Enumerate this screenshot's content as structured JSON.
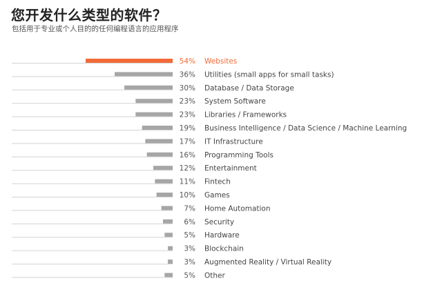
{
  "header": {
    "title": "您开发什么类型的软件？",
    "subtitle": "包括用于专业或个人目的的任何编程语言的应用程序"
  },
  "colors": {
    "highlight": "#f26b38",
    "bar": "#a6a6a6",
    "baseline": "#d3d3d3"
  },
  "chart_data": {
    "type": "bar",
    "orientation": "horizontal",
    "title": "您开发什么类型的软件？",
    "subtitle": "包括用于专业或个人目的的任何编程语言的应用程序",
    "value_format": "percent",
    "highlight_index": 0,
    "categories": [
      "Websites",
      "Utilities (small apps for small tasks)",
      "Database / Data Storage",
      "System Software",
      "Libraries / Frameworks",
      "Business Intelligence / Data Science / Machine Learning",
      "IT Infrastructure",
      "Programming Tools",
      "Entertainment",
      "Fintech",
      "Games",
      "Home Automation",
      "Security",
      "Hardware",
      "Blockchain",
      "Augmented Reality / Virtual Reality",
      "Other"
    ],
    "values": [
      54,
      36,
      30,
      23,
      23,
      19,
      17,
      16,
      12,
      11,
      10,
      7,
      6,
      5,
      3,
      3,
      5
    ],
    "labels": [
      "54%",
      "36%",
      "30%",
      "23%",
      "23%",
      "19%",
      "17%",
      "16%",
      "12%",
      "11%",
      "10%",
      "7%",
      "6%",
      "5%",
      "3%",
      "3%",
      "5%"
    ],
    "xlim": [
      0,
      54
    ],
    "grid": false,
    "legend": "none"
  }
}
